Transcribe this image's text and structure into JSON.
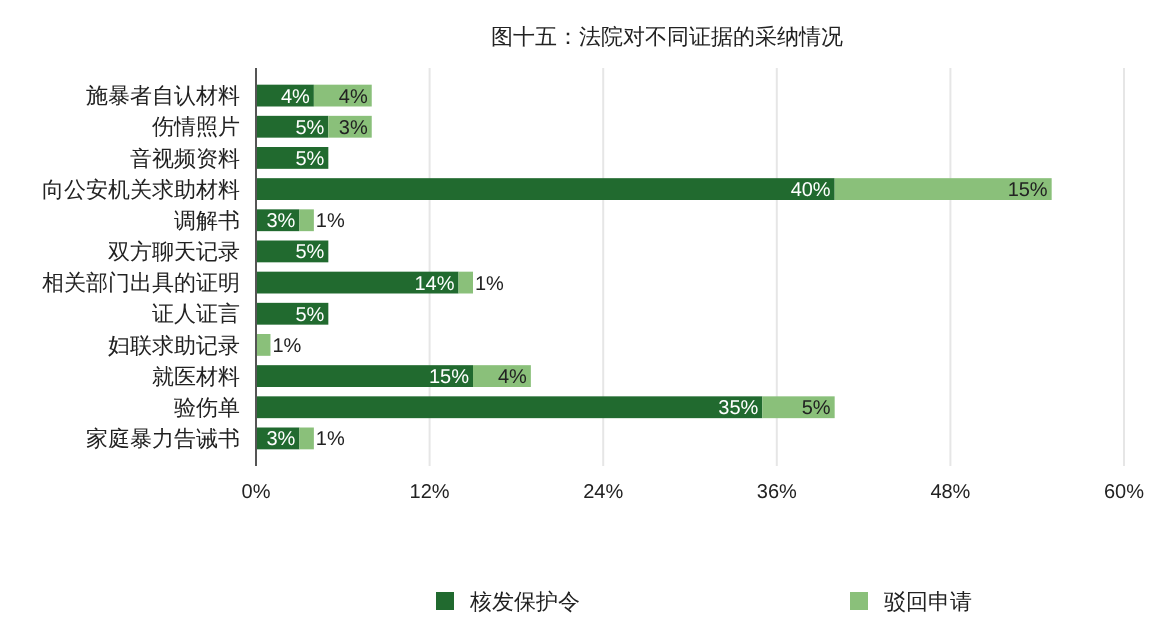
{
  "chart_data": {
    "type": "bar",
    "orientation": "horizontal",
    "stacked": true,
    "title": "图十五：法院对不同证据的采纳情况",
    "categories": [
      "施暴者自认材料",
      "伤情照片",
      "音视频资料",
      "向公安机关求助材料",
      "调解书",
      "双方聊天记录",
      "相关部门出具的证明",
      "证人证言",
      "妇联求助记录",
      "就医材料",
      "验伤单",
      "家庭暴力告诫书"
    ],
    "series": [
      {
        "name": "核发保护令",
        "color": "#216a2f",
        "values": [
          4,
          5,
          5,
          40,
          3,
          5,
          14,
          5,
          null,
          15,
          35,
          3
        ],
        "value_labels": [
          "4%",
          "5%",
          "5%",
          "40%",
          "3%",
          "5%",
          "14%",
          "5%",
          null,
          "15%",
          "35%",
          "3%"
        ]
      },
      {
        "name": "驳回申请",
        "color": "#8ac07a",
        "values": [
          4,
          3,
          null,
          15,
          1,
          null,
          1,
          null,
          1,
          4,
          5,
          1
        ],
        "value_labels": [
          "4%",
          "3%",
          null,
          "15%",
          "1%",
          null,
          "1%",
          null,
          "1%",
          "4%",
          "5%",
          "1%"
        ]
      }
    ],
    "xlim": [
      0,
      60
    ],
    "xticks": [
      {
        "value": 0,
        "label": "0%"
      },
      {
        "value": 12,
        "label": "12%"
      },
      {
        "value": 24,
        "label": "24%"
      },
      {
        "value": 36,
        "label": "36%"
      },
      {
        "value": 48,
        "label": "48%"
      },
      {
        "value": 60,
        "label": "60%"
      }
    ],
    "grid": "x",
    "legend": "bottom"
  }
}
